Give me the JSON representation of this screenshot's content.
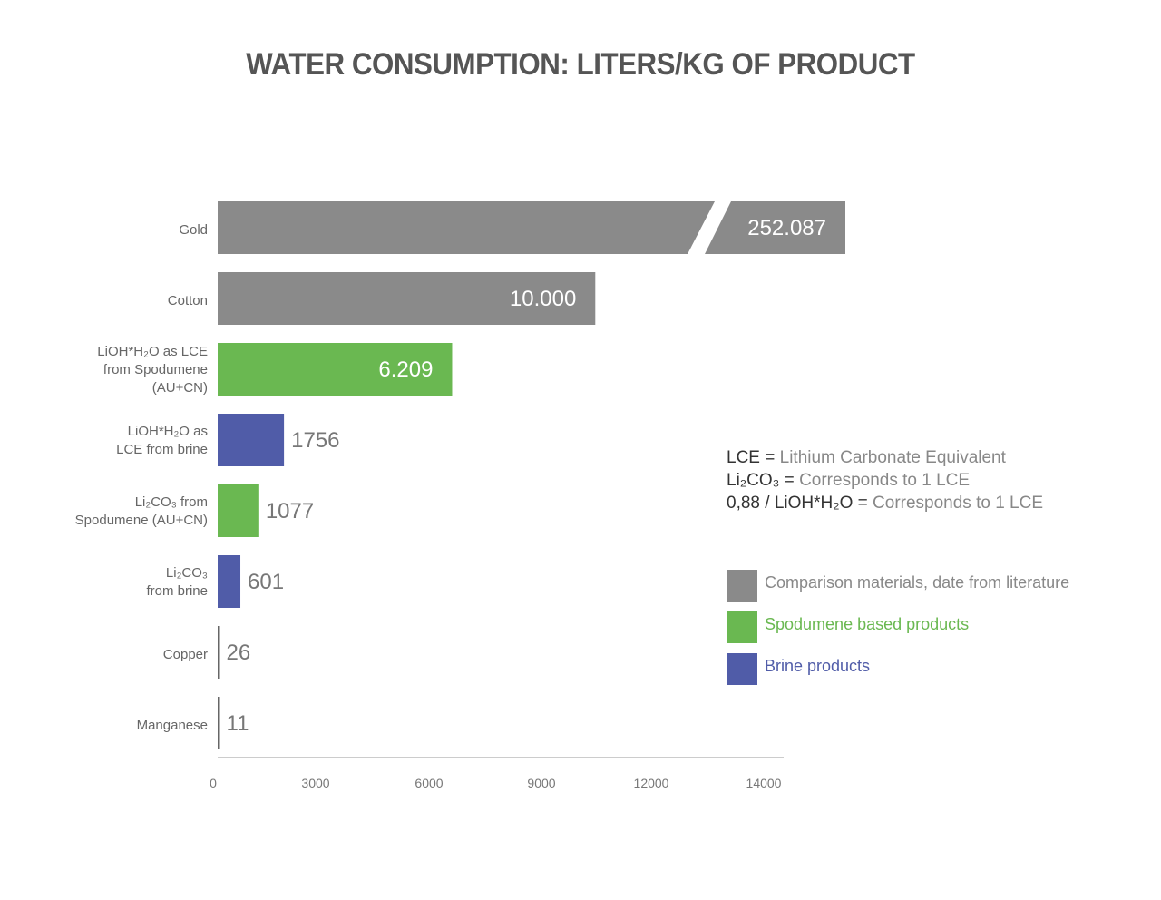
{
  "chart_data": {
    "type": "bar",
    "orientation": "horizontal",
    "title": "WATER CONSUMPTION: LITERS/KG OF PRODUCT",
    "categories": [
      [
        "Gold"
      ],
      [
        "Cotton"
      ],
      [
        "LiOH*H₂O as LCE",
        "from Spodumene",
        "(AU+CN)"
      ],
      [
        "LiOH*H₂O as",
        "LCE from brine"
      ],
      [
        "Li₂CO₃ from",
        "Spodumene (AU+CN)"
      ],
      [
        "Li₂CO₃",
        "from brine"
      ],
      [
        "Copper"
      ],
      [
        "Manganese"
      ]
    ],
    "values": [
      252087,
      10000,
      6209,
      1756,
      1077,
      601,
      26,
      11
    ],
    "value_labels": [
      "252.087",
      "10.000",
      "6.209",
      "1756",
      "1077",
      "601",
      "26",
      "11"
    ],
    "groups": [
      "comparison",
      "comparison",
      "spodumene",
      "brine",
      "spodumene",
      "brine",
      "comparison",
      "comparison"
    ],
    "broken_axis_bar": 0,
    "x_ticks": [
      "0",
      "3000",
      "6000",
      "9000",
      "12000",
      "14000"
    ],
    "colors": {
      "comparison": "#8a8a8a",
      "spodumene": "#6ab851",
      "brine": "#505ca8"
    }
  },
  "definitions": [
    {
      "key": "LCE",
      "text": "Lithium Carbonate Equivalent"
    },
    {
      "key": "Li₂CO₃",
      "text": "Corresponds to 1 LCE"
    },
    {
      "key": "0,88 / LiOH*H₂O",
      "text": "Corresponds to 1 LCE"
    }
  ],
  "legend": [
    {
      "label": "Comparison materials, date from literature",
      "color": "#8a8a8a",
      "text_color": "#888888"
    },
    {
      "label": "Spodumene based products",
      "color": "#6ab851",
      "text_color": "#6ab851"
    },
    {
      "label": "Brine products",
      "color": "#505ca8",
      "text_color": "#505ca8"
    }
  ]
}
